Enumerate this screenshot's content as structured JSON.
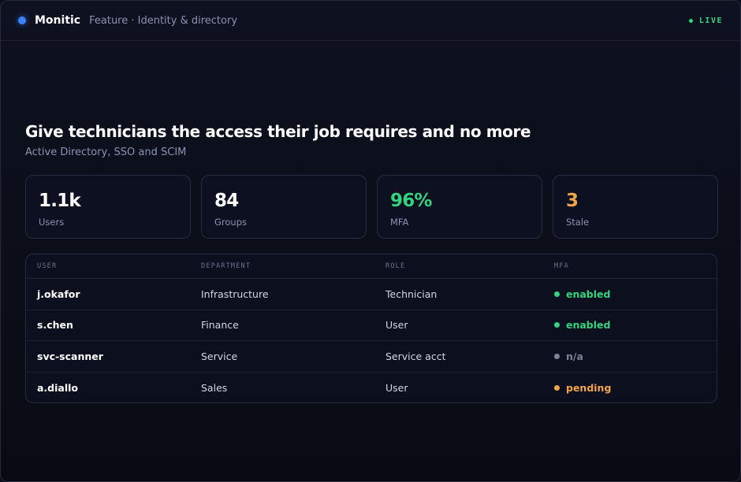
{
  "header": {
    "brand": "Monitic",
    "breadcrumb": "Feature · Identity & directory",
    "status": "LIVE"
  },
  "hero": {
    "title": "Give technicians the access their job requires and no more",
    "subtitle": "Active Directory, SSO and SCIM"
  },
  "stats": [
    {
      "value": "1.1k",
      "label": "Users",
      "color": "#ffffff"
    },
    {
      "value": "84",
      "label": "Groups",
      "color": "#ffffff"
    },
    {
      "value": "96%",
      "label": "MFA",
      "color": "#34d37f"
    },
    {
      "value": "3",
      "label": "Stale",
      "color": "#f2a54a"
    }
  ],
  "table": {
    "columns": [
      "USER",
      "DEPARTMENT",
      "ROLE",
      "MFA"
    ],
    "rows": [
      {
        "user": "j.okafor",
        "department": "Infrastructure",
        "role": "Technician",
        "mfa": "enabled",
        "mfa_color": "#34d37f"
      },
      {
        "user": "s.chen",
        "department": "Finance",
        "role": "User",
        "mfa": "enabled",
        "mfa_color": "#34d37f"
      },
      {
        "user": "svc-scanner",
        "department": "Service",
        "role": "Service acct",
        "mfa": "n/a",
        "mfa_color": "#7c8398"
      },
      {
        "user": "a.diallo",
        "department": "Sales",
        "role": "User",
        "mfa": "pending",
        "mfa_color": "#f2a54a"
      }
    ]
  },
  "colors": {
    "accent": "#3b82f6",
    "live": "#34d37f"
  }
}
